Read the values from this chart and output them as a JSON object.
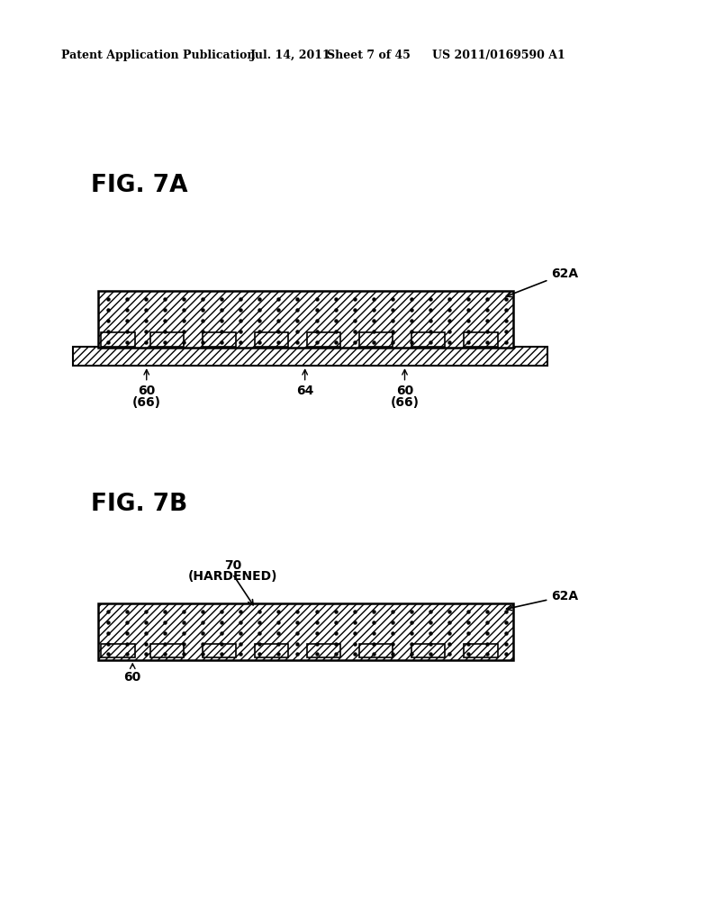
{
  "bg_color": "#ffffff",
  "header_text": "Patent Application Publication",
  "header_date": "Jul. 14, 2011",
  "header_sheet": "Sheet 7 of 45",
  "header_patent": "US 2011/0169590 A1",
  "fig7a_label": "FIG. 7A",
  "fig7b_label": "FIG. 7B",
  "label_62A_7a": "62A",
  "label_60_left_7a": "60",
  "label_66_left_7a": "(66)",
  "label_64_7a": "64",
  "label_60_right_7a": "60",
  "label_66_right_7a": "(66)",
  "label_70": "70",
  "label_hardened": "(HARDENED)",
  "label_62A_7b": "62A",
  "label_60_7b": "60"
}
